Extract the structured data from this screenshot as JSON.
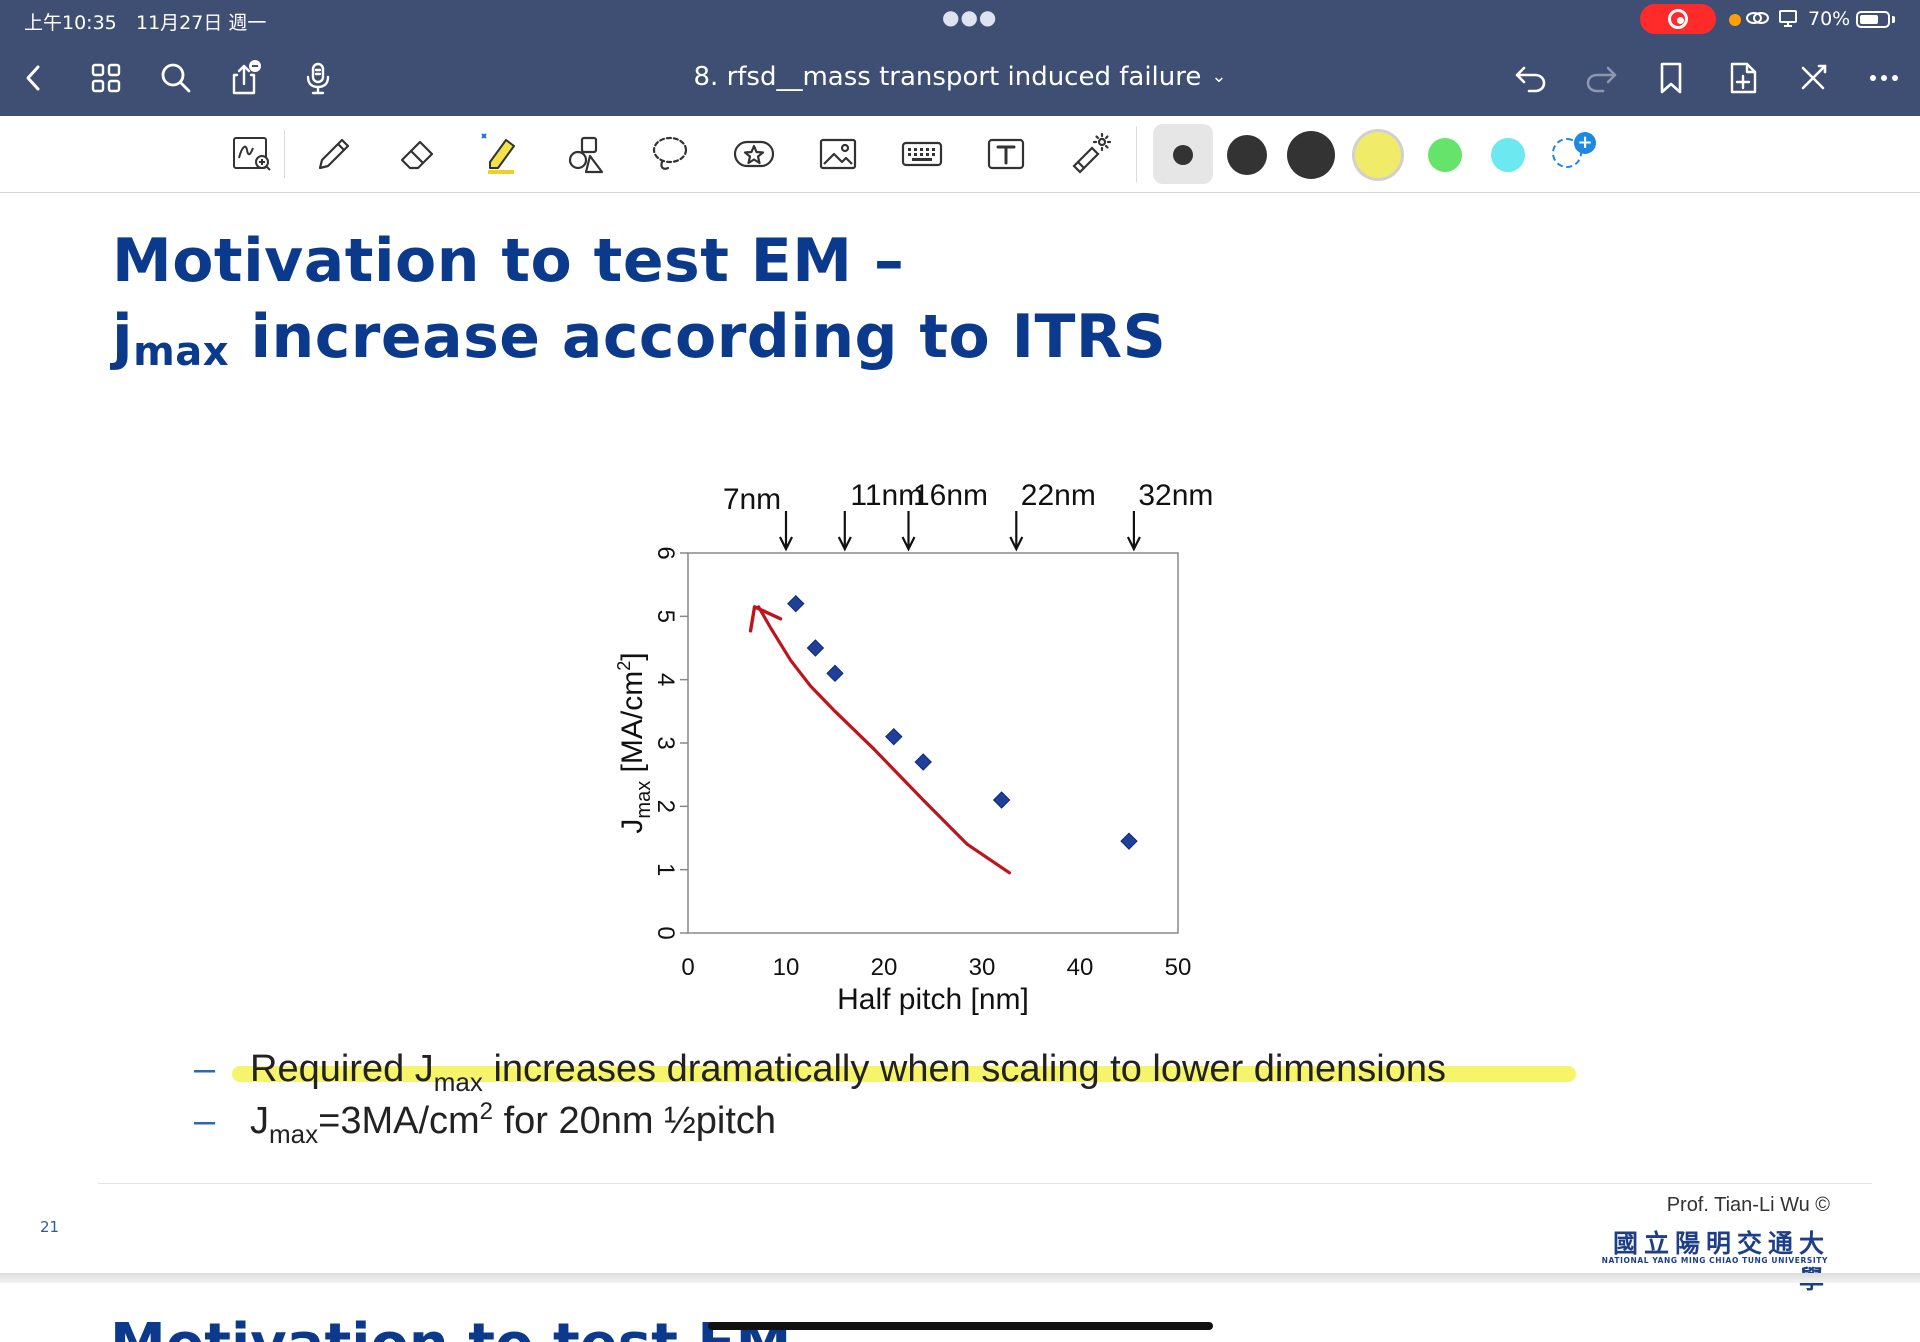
{
  "status_bar": {
    "time": "上午10:35",
    "date": "11月27日 週一",
    "battery_pct": "70%",
    "battery_level": 0.7
  },
  "nav": {
    "title": "8. rfsd__mass transport induced failure"
  },
  "toolbar": {
    "tools": [
      "zoom-write-icon",
      "pen-icon",
      "eraser-icon",
      "highlighter-icon",
      "shapes-icon",
      "lasso-icon",
      "sticker-icon",
      "image-icon",
      "keyboard-icon",
      "text-box-icon",
      "laser-pointer-icon"
    ],
    "colors": {
      "black": "#333333",
      "yellow": "#f0ec6a",
      "green": "#66e36a",
      "cyan": "#6be8f0",
      "accent": "#1e88e5"
    }
  },
  "slide": {
    "title_line1": "Motivation to test EM –",
    "title_j": "j",
    "title_sub": "max",
    "title_line2_rest": " increase according to ITRS",
    "bullet1_pre": "Required J",
    "bullet1_sub": "max",
    "bullet1_post": " increases dramatically when scaling to lower dimensions",
    "bullet2_pre": "J",
    "bullet2_sub": "max",
    "bullet2_mid": "=3MA/cm",
    "bullet2_sup": "2",
    "bullet2_post": " for 20nm ½pitch",
    "dash": "–",
    "page_number": "21",
    "credit": "Prof. Tian-Li Wu ©",
    "logo_cn": "國立陽明交通大學",
    "logo_en": "NATIONAL YANG MING CHIAO TUNG UNIVERSITY",
    "next_title": "Motivation to test EM"
  },
  "chart_data": {
    "type": "scatter",
    "xlabel": "Half pitch [nm]",
    "ylabel_pre": "J",
    "ylabel_sub": "max",
    "ylabel_post": " [MA/cm",
    "ylabel_sup": "2",
    "ylabel_end": "]",
    "xlim": [
      0,
      50
    ],
    "ylim": [
      0,
      6
    ],
    "xticks": [
      0,
      10,
      20,
      30,
      40,
      50
    ],
    "yticks": [
      0,
      1,
      2,
      3,
      4,
      5,
      6
    ],
    "points": [
      {
        "x": 11,
        "y": 5.2
      },
      {
        "x": 13,
        "y": 4.5
      },
      {
        "x": 15,
        "y": 4.1
      },
      {
        "x": 21,
        "y": 3.1
      },
      {
        "x": 24,
        "y": 2.7
      },
      {
        "x": 32,
        "y": 2.1
      },
      {
        "x": 45,
        "y": 1.45
      }
    ],
    "node_markers": [
      {
        "label": "7nm",
        "x": 10
      },
      {
        "label": "11nm",
        "x": 16
      },
      {
        "label": "16nm",
        "x": 22.5
      },
      {
        "label": "22nm",
        "x": 33.5
      },
      {
        "label": "32nm",
        "x": 45.5
      }
    ],
    "annotation_curve": [
      {
        "x": 32.8,
        "y": 0.95
      },
      {
        "x": 28.5,
        "y": 1.4
      },
      {
        "x": 24,
        "y": 2.1
      },
      {
        "x": 19,
        "y": 2.9
      },
      {
        "x": 15,
        "y": 3.5
      },
      {
        "x": 12.5,
        "y": 3.9
      },
      {
        "x": 10.5,
        "y": 4.3
      },
      {
        "x": 8.5,
        "y": 4.8
      },
      {
        "x": 7.2,
        "y": 5.15
      }
    ],
    "marker_color": "#1f3f9a",
    "annotation_color": "#c0141c"
  }
}
